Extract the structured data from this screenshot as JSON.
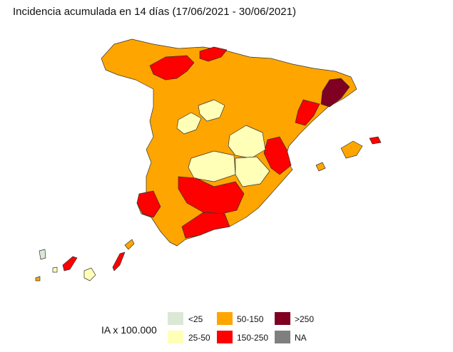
{
  "title": "Incidencia acumulada en 14 días (17/06/2021 - 30/06/2021)",
  "legend": {
    "title": "IA x 100.000",
    "items": [
      {
        "label": "<25",
        "color": "#dbe8d4"
      },
      {
        "label": "25-50",
        "color": "#ffffb8"
      },
      {
        "label": "50-150",
        "color": "#ffa500"
      },
      {
        "label": "150-250",
        "color": "#ff0000"
      },
      {
        "label": ">250",
        "color": "#7f0020"
      },
      {
        "label": "NA",
        "color": "#7f7f7f"
      }
    ]
  }
}
